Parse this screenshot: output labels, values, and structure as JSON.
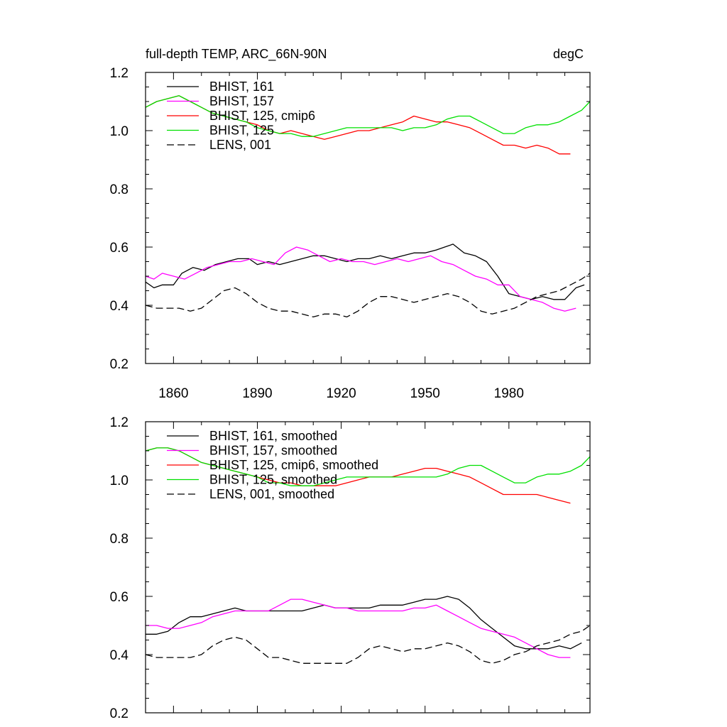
{
  "chart_data": [
    {
      "type": "line",
      "title": "full-depth TEMP, ARC_66N-90N",
      "units": "degC",
      "xlabel": "",
      "ylabel": "",
      "xlim": [
        1850,
        2009
      ],
      "ylim": [
        0.2,
        1.2
      ],
      "xticks": [
        1860,
        1890,
        1920,
        1950,
        1980
      ],
      "xtick_labels": [
        "1860",
        "1890",
        "1920",
        "1950",
        "1980"
      ],
      "yticks": [
        0.2,
        0.4,
        0.6,
        0.8,
        1.0,
        1.2
      ],
      "ytick_labels": [
        "0.2",
        "0.4",
        "0.6",
        "0.8",
        "1.0",
        "1.2"
      ],
      "legend_position": "top-left",
      "series": [
        {
          "name": "BHIST, 161",
          "color": "#000000",
          "dash": "solid",
          "x": [
            1850,
            1853,
            1856,
            1860,
            1863,
            1867,
            1871,
            1875,
            1879,
            1883,
            1887,
            1890,
            1894,
            1898,
            1902,
            1906,
            1910,
            1914,
            1918,
            1922,
            1926,
            1930,
            1934,
            1938,
            1942,
            1946,
            1950,
            1954,
            1957,
            1960,
            1964,
            1968,
            1972,
            1976,
            1980,
            1984,
            1988,
            1992,
            1996,
            2000,
            2004,
            2007
          ],
          "y": [
            0.48,
            0.46,
            0.47,
            0.47,
            0.51,
            0.53,
            0.52,
            0.54,
            0.55,
            0.56,
            0.56,
            0.54,
            0.55,
            0.54,
            0.55,
            0.56,
            0.57,
            0.57,
            0.56,
            0.55,
            0.56,
            0.56,
            0.57,
            0.56,
            0.57,
            0.58,
            0.58,
            0.59,
            0.6,
            0.61,
            0.58,
            0.57,
            0.55,
            0.5,
            0.44,
            0.43,
            0.42,
            0.43,
            0.42,
            0.42,
            0.46,
            0.47
          ]
        },
        {
          "name": "BHIST, 157",
          "color": "#ff00ff",
          "dash": "solid",
          "x": [
            1850,
            1853,
            1856,
            1860,
            1864,
            1868,
            1872,
            1876,
            1880,
            1884,
            1888,
            1892,
            1896,
            1900,
            1904,
            1908,
            1912,
            1916,
            1920,
            1924,
            1928,
            1932,
            1936,
            1940,
            1944,
            1948,
            1952,
            1956,
            1960,
            1964,
            1968,
            1972,
            1976,
            1980,
            1984,
            1988,
            1992,
            1996,
            2000,
            2004
          ],
          "y": [
            0.5,
            0.49,
            0.51,
            0.5,
            0.49,
            0.51,
            0.53,
            0.54,
            0.55,
            0.55,
            0.56,
            0.55,
            0.54,
            0.58,
            0.6,
            0.59,
            0.57,
            0.55,
            0.56,
            0.55,
            0.55,
            0.54,
            0.55,
            0.56,
            0.55,
            0.56,
            0.57,
            0.55,
            0.54,
            0.52,
            0.5,
            0.49,
            0.47,
            0.47,
            0.43,
            0.42,
            0.41,
            0.39,
            0.38,
            0.39
          ]
        },
        {
          "name": "BHIST, 125, cmip6",
          "color": "#ff0000",
          "dash": "solid",
          "x": [
            1850,
            1854,
            1858,
            1862,
            1866,
            1870,
            1874,
            1878,
            1882,
            1886,
            1890,
            1894,
            1898,
            1902,
            1906,
            1910,
            1914,
            1918,
            1922,
            1926,
            1930,
            1934,
            1938,
            1942,
            1946,
            1950,
            1954,
            1958,
            1962,
            1966,
            1970,
            1974,
            1978,
            1982,
            1986,
            1990,
            1994,
            1998,
            2002
          ],
          "y": [
            1.08,
            1.1,
            1.11,
            1.12,
            1.1,
            1.08,
            1.06,
            1.05,
            1.04,
            1.03,
            1.02,
            1.0,
            0.99,
            1.0,
            0.99,
            0.98,
            0.97,
            0.98,
            0.99,
            1.0,
            1.0,
            1.01,
            1.02,
            1.03,
            1.05,
            1.04,
            1.03,
            1.03,
            1.02,
            1.01,
            0.99,
            0.97,
            0.95,
            0.95,
            0.94,
            0.95,
            0.94,
            0.92,
            0.92
          ]
        },
        {
          "name": "BHIST, 125",
          "color": "#00e000",
          "dash": "solid",
          "x": [
            1850,
            1854,
            1858,
            1862,
            1866,
            1870,
            1874,
            1878,
            1882,
            1886,
            1890,
            1894,
            1898,
            1902,
            1906,
            1910,
            1914,
            1918,
            1922,
            1926,
            1930,
            1934,
            1938,
            1942,
            1946,
            1950,
            1954,
            1958,
            1962,
            1966,
            1970,
            1974,
            1978,
            1982,
            1986,
            1990,
            1994,
            1998,
            2002,
            2006,
            2009
          ],
          "y": [
            1.08,
            1.1,
            1.11,
            1.12,
            1.1,
            1.08,
            1.06,
            1.05,
            1.04,
            1.03,
            1.01,
            1.0,
            0.99,
            0.99,
            0.98,
            0.98,
            0.99,
            1.0,
            1.01,
            1.01,
            1.01,
            1.01,
            1.01,
            1.0,
            1.01,
            1.01,
            1.02,
            1.04,
            1.05,
            1.05,
            1.03,
            1.01,
            0.99,
            0.99,
            1.01,
            1.02,
            1.02,
            1.03,
            1.05,
            1.07,
            1.1
          ]
        },
        {
          "name": "LENS, 001",
          "color": "#000000",
          "dash": "dashed",
          "x": [
            1850,
            1854,
            1858,
            1862,
            1866,
            1870,
            1874,
            1878,
            1882,
            1886,
            1890,
            1894,
            1898,
            1902,
            1906,
            1910,
            1914,
            1918,
            1922,
            1926,
            1930,
            1934,
            1938,
            1942,
            1946,
            1950,
            1954,
            1958,
            1962,
            1966,
            1970,
            1974,
            1978,
            1982,
            1986,
            1990,
            1994,
            1998,
            2002,
            2006,
            2009
          ],
          "y": [
            0.4,
            0.39,
            0.39,
            0.39,
            0.38,
            0.39,
            0.42,
            0.45,
            0.46,
            0.44,
            0.41,
            0.39,
            0.38,
            0.38,
            0.37,
            0.36,
            0.37,
            0.37,
            0.36,
            0.38,
            0.41,
            0.43,
            0.43,
            0.42,
            0.41,
            0.42,
            0.43,
            0.44,
            0.43,
            0.41,
            0.38,
            0.37,
            0.38,
            0.39,
            0.41,
            0.43,
            0.44,
            0.45,
            0.47,
            0.49,
            0.51
          ]
        }
      ]
    },
    {
      "type": "line",
      "title": "",
      "units": "",
      "xlabel": "",
      "ylabel": "",
      "xlim": [
        1850,
        2009
      ],
      "ylim": [
        0.2,
        1.2
      ],
      "xticks": [
        1860,
        1890,
        1920,
        1950,
        1980
      ],
      "xtick_labels": [],
      "yticks": [
        0.2,
        0.4,
        0.6,
        0.8,
        1.0,
        1.2
      ],
      "ytick_labels": [
        "0.2",
        "0.4",
        "0.6",
        "0.8",
        "1.0",
        "1.2"
      ],
      "legend_position": "top-left",
      "series": [
        {
          "name": "BHIST, 161, smoothed",
          "color": "#000000",
          "dash": "solid",
          "x": [
            1850,
            1854,
            1858,
            1862,
            1866,
            1870,
            1874,
            1878,
            1882,
            1886,
            1890,
            1894,
            1898,
            1902,
            1906,
            1910,
            1914,
            1918,
            1922,
            1926,
            1930,
            1934,
            1938,
            1942,
            1946,
            1950,
            1954,
            1958,
            1962,
            1966,
            1970,
            1974,
            1978,
            1982,
            1986,
            1990,
            1994,
            1998,
            2002,
            2006
          ],
          "y": [
            0.47,
            0.47,
            0.48,
            0.51,
            0.53,
            0.53,
            0.54,
            0.55,
            0.56,
            0.55,
            0.55,
            0.55,
            0.55,
            0.55,
            0.55,
            0.56,
            0.57,
            0.56,
            0.56,
            0.56,
            0.56,
            0.57,
            0.57,
            0.57,
            0.58,
            0.59,
            0.59,
            0.6,
            0.59,
            0.56,
            0.52,
            0.49,
            0.46,
            0.43,
            0.42,
            0.42,
            0.42,
            0.43,
            0.42,
            0.44
          ]
        },
        {
          "name": "BHIST, 157, smoothed",
          "color": "#ff00ff",
          "dash": "solid",
          "x": [
            1850,
            1854,
            1858,
            1862,
            1866,
            1870,
            1874,
            1878,
            1882,
            1886,
            1890,
            1894,
            1898,
            1902,
            1906,
            1910,
            1914,
            1918,
            1922,
            1926,
            1930,
            1934,
            1938,
            1942,
            1946,
            1950,
            1954,
            1958,
            1962,
            1966,
            1970,
            1974,
            1978,
            1982,
            1986,
            1990,
            1994,
            1998,
            2002
          ],
          "y": [
            0.5,
            0.5,
            0.49,
            0.49,
            0.5,
            0.51,
            0.53,
            0.54,
            0.55,
            0.55,
            0.55,
            0.55,
            0.57,
            0.59,
            0.59,
            0.58,
            0.57,
            0.56,
            0.56,
            0.55,
            0.55,
            0.55,
            0.55,
            0.55,
            0.56,
            0.56,
            0.57,
            0.55,
            0.53,
            0.51,
            0.49,
            0.48,
            0.47,
            0.46,
            0.44,
            0.42,
            0.4,
            0.39,
            0.39
          ]
        },
        {
          "name": "BHIST, 125, cmip6, smoothed",
          "color": "#ff0000",
          "dash": "solid",
          "x": [
            1850,
            1854,
            1858,
            1862,
            1866,
            1870,
            1874,
            1878,
            1882,
            1886,
            1890,
            1894,
            1898,
            1902,
            1906,
            1910,
            1914,
            1918,
            1922,
            1926,
            1930,
            1934,
            1938,
            1942,
            1946,
            1950,
            1954,
            1958,
            1962,
            1966,
            1970,
            1974,
            1978,
            1982,
            1986,
            1990,
            1994,
            1998,
            2002
          ],
          "y": [
            1.1,
            1.11,
            1.11,
            1.1,
            1.08,
            1.06,
            1.05,
            1.04,
            1.03,
            1.02,
            1.01,
            1.0,
            0.99,
            0.99,
            0.98,
            0.98,
            0.98,
            0.98,
            0.99,
            1.0,
            1.01,
            1.01,
            1.01,
            1.02,
            1.03,
            1.04,
            1.04,
            1.03,
            1.02,
            1.01,
            0.99,
            0.97,
            0.95,
            0.95,
            0.95,
            0.95,
            0.94,
            0.93,
            0.92
          ]
        },
        {
          "name": "BHIST, 125, smoothed",
          "color": "#00e000",
          "dash": "solid",
          "x": [
            1850,
            1854,
            1858,
            1862,
            1866,
            1870,
            1874,
            1878,
            1882,
            1886,
            1890,
            1894,
            1898,
            1902,
            1906,
            1910,
            1914,
            1918,
            1922,
            1926,
            1930,
            1934,
            1938,
            1942,
            1946,
            1950,
            1954,
            1958,
            1962,
            1966,
            1970,
            1974,
            1978,
            1982,
            1986,
            1990,
            1994,
            1998,
            2002,
            2006,
            2009
          ],
          "y": [
            1.1,
            1.11,
            1.11,
            1.1,
            1.08,
            1.06,
            1.05,
            1.04,
            1.03,
            1.02,
            1.01,
            0.99,
            0.99,
            0.98,
            0.98,
            0.98,
            0.99,
            1.0,
            1.01,
            1.01,
            1.01,
            1.01,
            1.01,
            1.01,
            1.01,
            1.01,
            1.01,
            1.02,
            1.04,
            1.05,
            1.05,
            1.03,
            1.01,
            0.99,
            0.99,
            1.01,
            1.02,
            1.02,
            1.03,
            1.05,
            1.08
          ]
        },
        {
          "name": "LENS, 001, smoothed",
          "color": "#000000",
          "dash": "dashed",
          "x": [
            1850,
            1854,
            1858,
            1862,
            1866,
            1870,
            1874,
            1878,
            1882,
            1886,
            1890,
            1894,
            1898,
            1902,
            1906,
            1910,
            1914,
            1918,
            1922,
            1926,
            1930,
            1934,
            1938,
            1942,
            1946,
            1950,
            1954,
            1958,
            1962,
            1966,
            1970,
            1974,
            1978,
            1982,
            1986,
            1990,
            1994,
            1998,
            2002,
            2006,
            2009
          ],
          "y": [
            0.4,
            0.39,
            0.39,
            0.39,
            0.39,
            0.4,
            0.43,
            0.45,
            0.46,
            0.45,
            0.42,
            0.39,
            0.39,
            0.38,
            0.37,
            0.37,
            0.37,
            0.37,
            0.37,
            0.39,
            0.42,
            0.43,
            0.42,
            0.41,
            0.42,
            0.42,
            0.43,
            0.44,
            0.43,
            0.41,
            0.38,
            0.37,
            0.38,
            0.4,
            0.41,
            0.43,
            0.44,
            0.45,
            0.47,
            0.48,
            0.5
          ]
        }
      ]
    }
  ]
}
